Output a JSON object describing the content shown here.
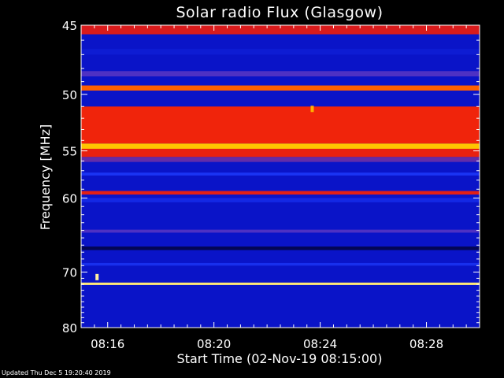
{
  "chart_data": {
    "type": "heatmap",
    "title": "Solar radio Flux (Glasgow)",
    "xlabel": "Start Time (02-Nov-19 08:15:00)",
    "ylabel": "Frequency [MHz]",
    "x_ticks": [
      "08:16",
      "08:20",
      "08:24",
      "08:28"
    ],
    "x_tick_minutes": [
      1,
      5,
      9,
      13
    ],
    "xlim_minutes": [
      0,
      15
    ],
    "y_ticks": [
      45,
      50,
      55,
      60,
      70,
      80
    ],
    "ylim": [
      45,
      80
    ],
    "colormap": [
      "#000022",
      "#0a14c8",
      "#1e3cff",
      "#c81428",
      "#ff2a00",
      "#ffd200",
      "#ffffe6"
    ],
    "background_color": "#0a14c8",
    "bands": [
      {
        "f0": 45.0,
        "f1": 45.6,
        "level": 0.55
      },
      {
        "f0": 46.6,
        "f1": 47.0,
        "level": 0.2
      },
      {
        "f0": 48.2,
        "f1": 48.6,
        "level": 0.38
      },
      {
        "f0": 49.3,
        "f1": 49.7,
        "level": 0.72
      },
      {
        "f0": 51.0,
        "f1": 54.3,
        "level": 0.62
      },
      {
        "f0": 54.3,
        "f1": 54.8,
        "level": 0.82
      },
      {
        "f0": 54.8,
        "f1": 55.6,
        "level": 0.6
      },
      {
        "f0": 55.6,
        "f1": 56.1,
        "level": 0.4
      },
      {
        "f0": 57.2,
        "f1": 57.5,
        "level": 0.3
      },
      {
        "f0": 59.2,
        "f1": 59.6,
        "level": 0.58
      },
      {
        "f0": 60.0,
        "f1": 60.5,
        "level": 0.25
      },
      {
        "f0": 63.9,
        "f1": 64.3,
        "level": 0.38
      },
      {
        "f0": 66.2,
        "f1": 66.7,
        "level": 0.05
      },
      {
        "f0": 68.6,
        "f1": 69.0,
        "level": 0.28
      },
      {
        "f0": 71.7,
        "f1": 72.1,
        "level": 0.92
      }
    ],
    "bursts": [
      {
        "minute": 0.6,
        "freq": 70.8,
        "level": 0.95
      },
      {
        "minute": 8.7,
        "freq": 51.2,
        "level": 0.8
      }
    ]
  },
  "footer": {
    "updated": "Updated Thu Dec  5 19:20:40 2019"
  }
}
